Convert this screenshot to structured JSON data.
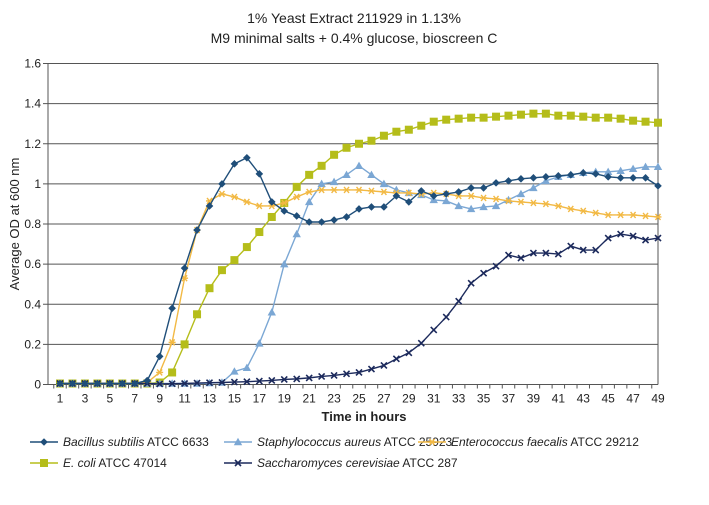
{
  "chart_data": {
    "type": "line",
    "title": [
      "1% Yeast Extract 211929 in 1.13%",
      "M9 minimal salts + 0.4% glucose, bioscreen C"
    ],
    "xlabel": "Time in hours",
    "ylabel": "Average OD at 600 nm",
    "xlim": [
      1,
      49
    ],
    "ylim": [
      0,
      1.6
    ],
    "grid": true,
    "legend_placement": "bottom",
    "x": [
      1,
      2,
      3,
      4,
      5,
      6,
      7,
      8,
      9,
      10,
      11,
      12,
      13,
      14,
      15,
      16,
      17,
      18,
      19,
      20,
      21,
      22,
      23,
      24,
      25,
      26,
      27,
      28,
      29,
      30,
      31,
      32,
      33,
      34,
      35,
      36,
      37,
      38,
      39,
      40,
      41,
      42,
      43,
      44,
      45,
      46,
      47,
      48,
      49
    ],
    "x_tick_labels": [
      "1",
      "3",
      "5",
      "7",
      "9",
      "11",
      "13",
      "15",
      "17",
      "19",
      "21",
      "23",
      "25",
      "27",
      "29",
      "31",
      "33",
      "35",
      "37",
      "39",
      "41",
      "43",
      "45",
      "47",
      "49"
    ],
    "y_tick_labels": [
      "0",
      "0.2",
      "0.4",
      "0.6",
      "0.8",
      "1",
      "1.2",
      "1.4",
      "1.6"
    ],
    "y_ticks": [
      0,
      0.2,
      0.4,
      0.6,
      0.8,
      1.0,
      1.2,
      1.4,
      1.6
    ],
    "series": [
      {
        "name_italic": "Bacillus subtilis",
        "name_rest": " ATCC 6633",
        "color": "#1f4e79",
        "marker": "diamond",
        "values": [
          0.005,
          0.005,
          0.005,
          0.005,
          0.005,
          0.005,
          0.005,
          0.02,
          0.14,
          0.38,
          0.58,
          0.77,
          0.89,
          1.0,
          1.1,
          1.13,
          1.05,
          0.91,
          0.865,
          0.84,
          0.81,
          0.81,
          0.82,
          0.835,
          0.875,
          0.885,
          0.885,
          0.94,
          0.91,
          0.965,
          0.94,
          0.95,
          0.96,
          0.98,
          0.98,
          1.005,
          1.015,
          1.025,
          1.03,
          1.035,
          1.04,
          1.045,
          1.055,
          1.05,
          1.035,
          1.03,
          1.03,
          1.03,
          0.99
        ]
      },
      {
        "name_italic": "Staphylococcus aureus",
        "name_rest": " ATCC 25923",
        "color": "#7ba7d4",
        "marker": "triangle",
        "values": [
          0.005,
          0.005,
          0.005,
          0.005,
          0.005,
          0.005,
          0.005,
          0.005,
          0.005,
          0.005,
          0.005,
          0.005,
          0.007,
          0.01,
          0.065,
          0.083,
          0.205,
          0.36,
          0.6,
          0.75,
          0.91,
          1.0,
          1.01,
          1.045,
          1.09,
          1.045,
          1.0,
          0.97,
          0.955,
          0.945,
          0.92,
          0.915,
          0.89,
          0.875,
          0.885,
          0.89,
          0.92,
          0.95,
          0.98,
          1.015,
          1.035,
          1.045,
          1.055,
          1.06,
          1.06,
          1.065,
          1.075,
          1.085,
          1.085
        ]
      },
      {
        "name_italic": "Enterococcus faecalis",
        "name_rest": " ATCC 29212",
        "color": "#f2b944",
        "marker": "asterisk",
        "values": [
          0.005,
          0.005,
          0.005,
          0.005,
          0.005,
          0.005,
          0.005,
          0.01,
          0.06,
          0.21,
          0.53,
          0.77,
          0.915,
          0.95,
          0.935,
          0.91,
          0.89,
          0.89,
          0.905,
          0.935,
          0.96,
          0.97,
          0.97,
          0.97,
          0.97,
          0.965,
          0.96,
          0.955,
          0.955,
          0.95,
          0.955,
          0.95,
          0.94,
          0.94,
          0.93,
          0.925,
          0.915,
          0.91,
          0.905,
          0.9,
          0.89,
          0.875,
          0.865,
          0.855,
          0.845,
          0.845,
          0.845,
          0.84,
          0.835
        ]
      },
      {
        "name_italic": "E. coli",
        "name_rest": " ATCC 47014",
        "color": "#b5bd1a",
        "marker": "square",
        "values": [
          0.005,
          0.005,
          0.005,
          0.005,
          0.005,
          0.005,
          0.005,
          0.005,
          0.01,
          0.06,
          0.2,
          0.35,
          0.48,
          0.57,
          0.62,
          0.685,
          0.76,
          0.835,
          0.905,
          0.985,
          1.045,
          1.09,
          1.145,
          1.18,
          1.2,
          1.215,
          1.24,
          1.26,
          1.27,
          1.29,
          1.31,
          1.32,
          1.325,
          1.33,
          1.33,
          1.335,
          1.34,
          1.345,
          1.35,
          1.35,
          1.34,
          1.34,
          1.335,
          1.33,
          1.33,
          1.325,
          1.315,
          1.31,
          1.305
        ]
      },
      {
        "name_italic": "Saccharomyces cerevisiae",
        "name_rest": " ATCC 287",
        "color": "#1c2a5c",
        "marker": "x",
        "values": [
          0.005,
          0.005,
          0.005,
          0.005,
          0.005,
          0.005,
          0.005,
          0.005,
          0.003,
          0.004,
          0.005,
          0.007,
          0.009,
          0.01,
          0.012,
          0.014,
          0.017,
          0.02,
          0.025,
          0.028,
          0.033,
          0.04,
          0.045,
          0.053,
          0.06,
          0.077,
          0.095,
          0.128,
          0.158,
          0.206,
          0.272,
          0.336,
          0.415,
          0.505,
          0.555,
          0.59,
          0.645,
          0.63,
          0.655,
          0.655,
          0.65,
          0.69,
          0.67,
          0.67,
          0.73,
          0.75,
          0.74,
          0.72,
          0.73
        ]
      }
    ],
    "legend_order": [
      0,
      1,
      2,
      3,
      4
    ]
  }
}
